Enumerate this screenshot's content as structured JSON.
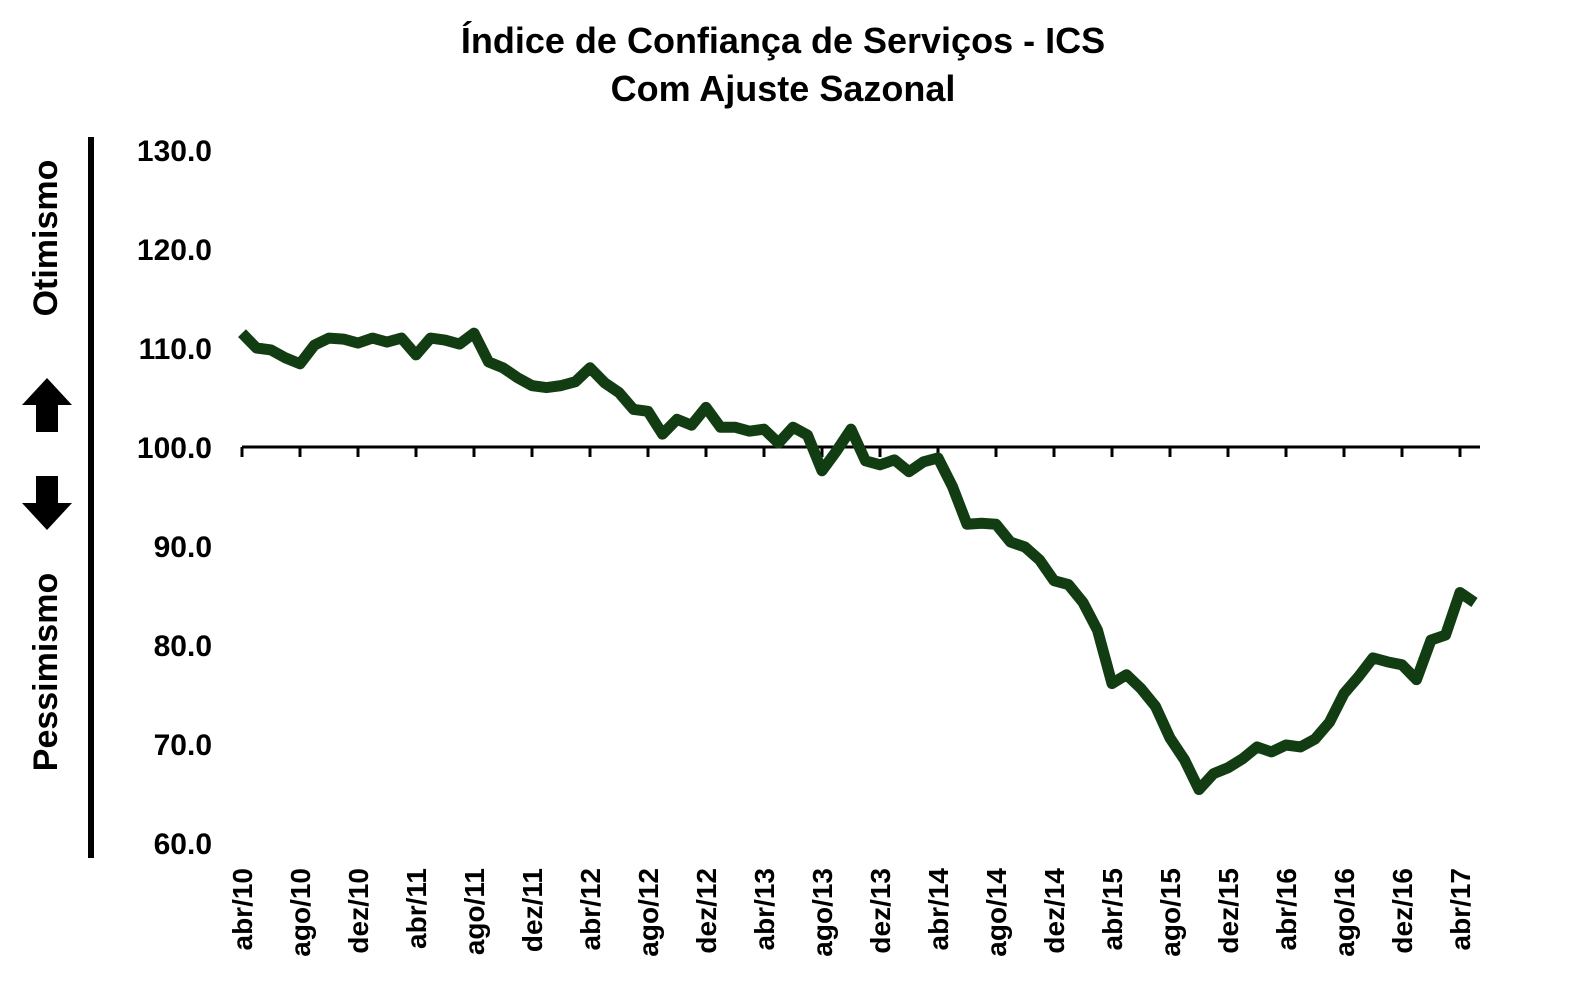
{
  "chart_data": {
    "type": "line",
    "title": "Índice de Confiança de Serviços - ICS",
    "subtitle": "Com Ajuste Sazonal",
    "annotations": [
      "Otimismo",
      "Pessimismo"
    ],
    "categories": [
      "abr/10",
      null,
      null,
      null,
      "ago/10",
      null,
      null,
      null,
      "dez/10",
      null,
      null,
      null,
      "abr/11",
      null,
      null,
      null,
      "ago/11",
      null,
      null,
      null,
      "dez/11",
      null,
      null,
      null,
      "abr/12",
      null,
      null,
      null,
      "ago/12",
      null,
      null,
      null,
      "dez/12",
      null,
      null,
      null,
      "abr/13",
      null,
      null,
      null,
      "ago/13",
      null,
      null,
      null,
      "dez/13",
      null,
      null,
      null,
      "abr/14",
      null,
      null,
      null,
      "ago/14",
      null,
      null,
      null,
      "dez/14",
      null,
      null,
      null,
      "abr/15",
      null,
      null,
      null,
      "ago/15",
      null,
      null,
      null,
      "dez/15",
      null,
      null,
      null,
      "abr/16",
      null,
      null,
      null,
      "ago/16",
      null,
      null,
      null,
      "dez/16",
      null,
      null,
      null,
      "abr/17",
      null
    ],
    "series": [
      {
        "name": "ICS",
        "color": "#123d12",
        "values": [
          111.5,
          110.0,
          109.8,
          109.0,
          108.4,
          110.3,
          111.0,
          110.9,
          110.5,
          111.0,
          110.6,
          111.0,
          109.3,
          111.0,
          110.8,
          110.4,
          111.5,
          108.6,
          108.0,
          107.0,
          106.2,
          106.0,
          106.2,
          106.6,
          108.0,
          106.5,
          105.5,
          103.8,
          103.6,
          101.3,
          102.8,
          102.2,
          104.0,
          102.0,
          102.0,
          101.6,
          101.8,
          100.4,
          102.0,
          101.2,
          97.6,
          99.6,
          101.8,
          98.6,
          98.2,
          98.7,
          97.5,
          98.5,
          98.9,
          96.0,
          92.2,
          92.3,
          92.2,
          90.4,
          89.9,
          88.6,
          86.5,
          86.1,
          84.3,
          81.5,
          76.1,
          77.0,
          75.6,
          73.8,
          70.6,
          68.4,
          65.4,
          67.0,
          67.6,
          68.5,
          69.7,
          69.2,
          69.9,
          69.7,
          70.5,
          72.2,
          75.1,
          76.8,
          78.7,
          78.3,
          78.0,
          76.5,
          80.5,
          81.0,
          85.3,
          84.3
        ]
      }
    ],
    "ylim": [
      60,
      130
    ],
    "yticks": [
      {
        "value": 60,
        "label": "60.0"
      },
      {
        "value": 70,
        "label": "70.0"
      },
      {
        "value": 80,
        "label": "80.0"
      },
      {
        "value": 90,
        "label": "90.0"
      },
      {
        "value": 100,
        "label": "100.0"
      },
      {
        "value": 110,
        "label": "110.0"
      },
      {
        "value": 120,
        "label": "120.0"
      },
      {
        "value": 130,
        "label": "130.0"
      }
    ],
    "x_axis_crossing": 100
  }
}
